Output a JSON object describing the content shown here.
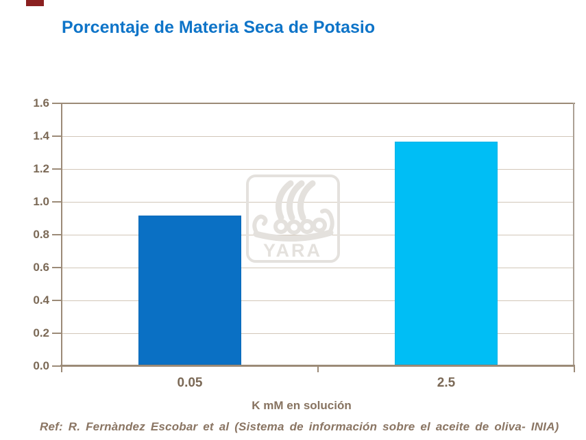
{
  "slide": {
    "title": "Porcentaje de Materia Seca de Potasio",
    "footer_ref": "Ref: R. Fernàndez Escobar et al (Sistema de información sobre el aceite de oliva- INIA)",
    "accent_mark_color": "#8a2020",
    "title_color": "#0e74c8"
  },
  "watermark": {
    "brand": "YARA",
    "icon": "yara-viking-ship-logo",
    "color": "#e4e1dd"
  },
  "chart_data": {
    "type": "bar",
    "title": "Porcentaje de Materia Seca de Potasio",
    "categories": [
      "0.05",
      "2.5"
    ],
    "values": [
      0.91,
      1.36
    ],
    "bar_colors": [
      "#0a70c4",
      "#00bef5"
    ],
    "xlabel": "K mM en solución",
    "ylabel": "",
    "ylim": [
      0,
      1.6
    ],
    "ytick_step": 0.2,
    "ytick_labels": [
      "0.0",
      "0.2",
      "0.4",
      "0.6",
      "0.8",
      "1.0",
      "1.2",
      "1.4",
      "1.6"
    ],
    "grid": true,
    "legend": false,
    "plot_border_color": "#9b8a77",
    "gridline_color": "#d2c6b8",
    "tick_label_color": "#7b6956"
  }
}
